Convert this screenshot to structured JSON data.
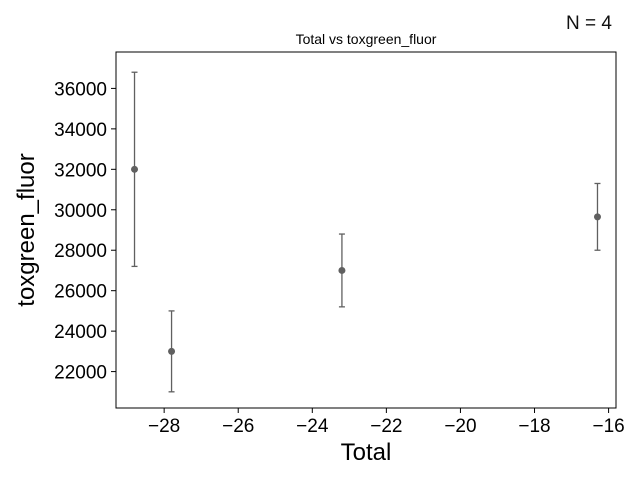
{
  "annotation": {
    "n_label": "N = 4"
  },
  "chart_data": {
    "type": "scatter",
    "title": "Total vs toxgreen_fluor",
    "xlabel": "Total",
    "ylabel": "toxgreen_fluor",
    "xlim": [
      -29.3,
      -15.8
    ],
    "ylim": [
      20200,
      37800
    ],
    "xticks": [
      -28,
      -26,
      -24,
      -22,
      -20,
      -18,
      -16
    ],
    "xtick_labels": [
      "−28",
      "−26",
      "−24",
      "−22",
      "−20",
      "−18",
      "−16"
    ],
    "yticks": [
      22000,
      24000,
      26000,
      28000,
      30000,
      32000,
      34000,
      36000
    ],
    "ytick_labels": [
      "22000",
      "24000",
      "26000",
      "28000",
      "30000",
      "32000",
      "34000",
      "36000"
    ],
    "grid": false,
    "marker_color": "#606060",
    "points": [
      {
        "x": -28.8,
        "y": 32000,
        "err": 4800
      },
      {
        "x": -27.8,
        "y": 23000,
        "err": 2000
      },
      {
        "x": -23.2,
        "y": 27000,
        "err": 1800
      },
      {
        "x": -16.3,
        "y": 29650,
        "err": 1650
      }
    ]
  }
}
